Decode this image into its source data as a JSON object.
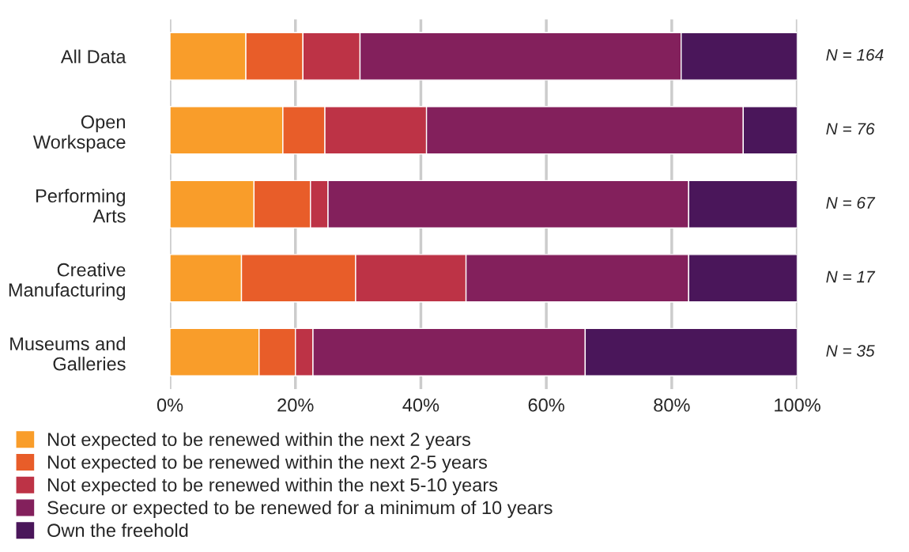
{
  "chart_data": {
    "type": "bar",
    "orientation": "horizontal",
    "stacked": true,
    "categories": [
      "All Data",
      "Open\nWorkspace",
      "Performing\nArts",
      "Creative\nManufacturing",
      "Museums and\nGalleries"
    ],
    "series": [
      {
        "name": "Not expected to be renewed within the next 2 years",
        "color": "#f99d2a",
        "values": [
          12.1,
          18.0,
          13.4,
          11.4,
          14.2
        ]
      },
      {
        "name": "Not expected to be renewed within the next 2-5 years",
        "color": "#e85d29",
        "values": [
          9.1,
          6.7,
          9.0,
          18.2,
          5.8
        ]
      },
      {
        "name": "Not expected to be renewed within the next 5-10 years",
        "color": "#bd3346",
        "values": [
          9.1,
          16.2,
          2.8,
          17.6,
          2.8
        ]
      },
      {
        "name": "Secure or expected to be renewed for a minimum of 10 years",
        "color": "#83205c",
        "values": [
          51.2,
          50.5,
          57.5,
          35.5,
          43.4
        ]
      },
      {
        "name": "Own the freehold",
        "color": "#4a165a",
        "values": [
          18.5,
          8.6,
          17.3,
          17.3,
          33.8
        ]
      }
    ],
    "xlim": [
      0,
      100
    ],
    "xticks": [
      {
        "value": 0,
        "label": "0%"
      },
      {
        "value": 20,
        "label": "20%"
      },
      {
        "value": 40,
        "label": "40%"
      },
      {
        "value": 60,
        "label": "60%"
      },
      {
        "value": 80,
        "label": "80%"
      },
      {
        "value": 100,
        "label": "100%"
      }
    ],
    "grid": "x",
    "legend": "bottom",
    "annotations": [
      "N = 164",
      "N = 76",
      "N = 67",
      "N = 17",
      "N = 35"
    ]
  }
}
